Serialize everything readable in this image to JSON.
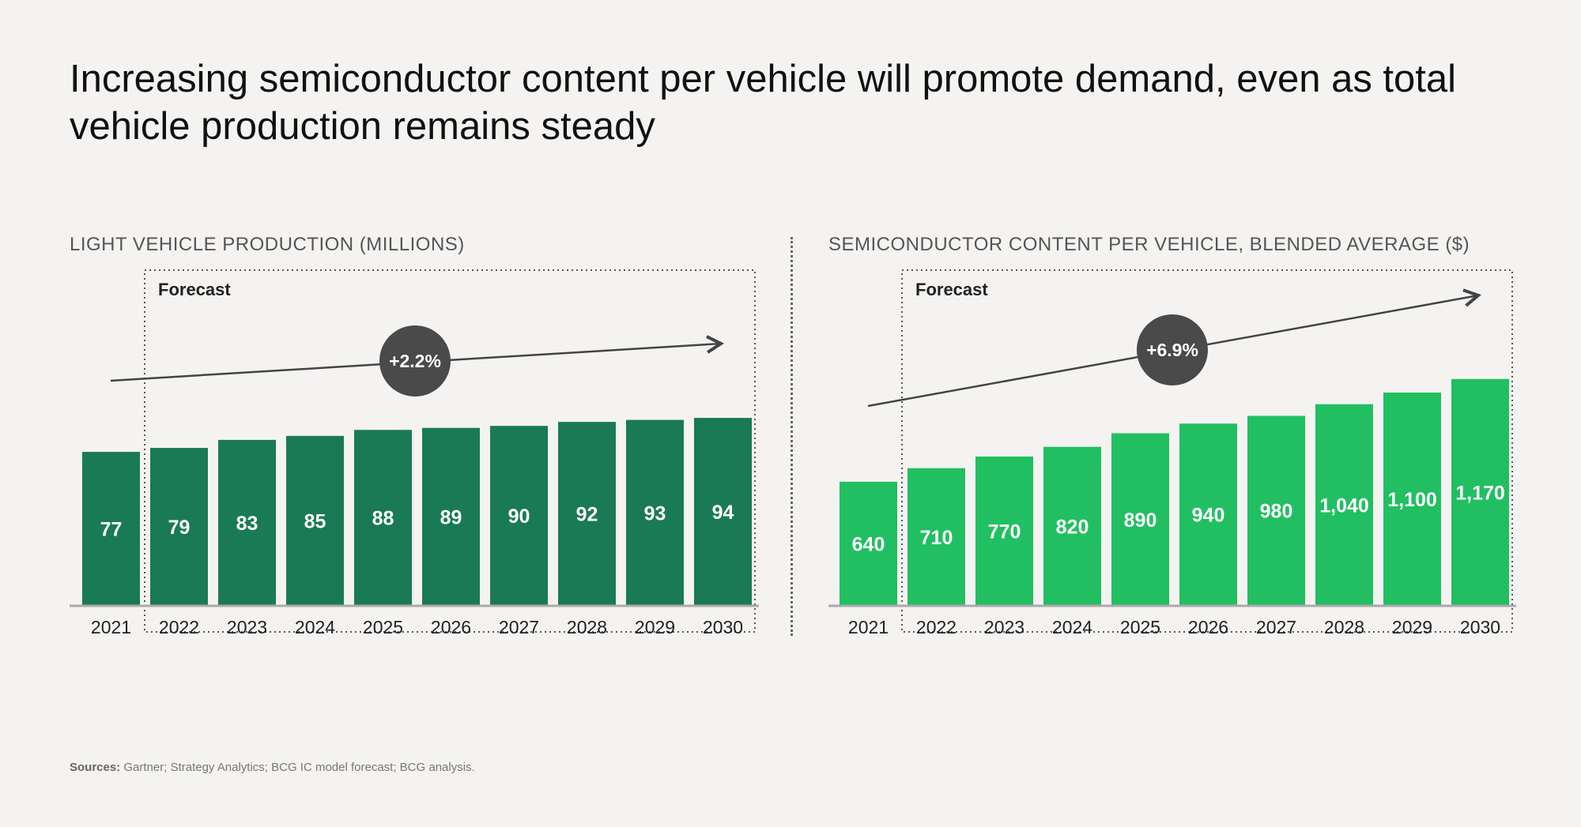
{
  "headline": "Increasing semiconductor content per vehicle will promote demand, even as total vehicle production remains steady",
  "sources": {
    "label": "Sources:",
    "text": "Gartner; Strategy Analytics; BCG IC model forecast; BCG analysis."
  },
  "colors": {
    "left_bars": "#1a7a55",
    "right_bars": "#21bf62",
    "bubble": "#4a4a4a",
    "axis": "#aaaaaa"
  },
  "chart_data": [
    {
      "type": "bar",
      "title": "LIGHT VEHICLE PRODUCTION (MILLIONS)",
      "categories": [
        "2021",
        "2022",
        "2023",
        "2024",
        "2025",
        "2026",
        "2027",
        "2028",
        "2029",
        "2030"
      ],
      "values": [
        77,
        79,
        83,
        85,
        88,
        89,
        90,
        92,
        93,
        94
      ],
      "value_labels": [
        "77",
        "79",
        "83",
        "85",
        "88",
        "89",
        "90",
        "92",
        "93",
        "94"
      ],
      "forecast_label": "Forecast",
      "forecast_start": "2022",
      "growth_label": "+2.2%",
      "ylim": [
        0,
        160
      ]
    },
    {
      "type": "bar",
      "title": "SEMICONDUCTOR CONTENT PER VEHICLE, BLENDED AVERAGE ($)",
      "categories": [
        "2021",
        "2022",
        "2023",
        "2024",
        "2025",
        "2026",
        "2027",
        "2028",
        "2029",
        "2030"
      ],
      "values": [
        640,
        710,
        770,
        820,
        890,
        940,
        980,
        1040,
        1100,
        1170
      ],
      "value_labels": [
        "640",
        "710",
        "770",
        "820",
        "890",
        "940",
        "980",
        "1,040",
        "1,100",
        "1,170"
      ],
      "forecast_label": "Forecast",
      "forecast_start": "2022",
      "growth_label": "+6.9%",
      "ylim": [
        0,
        1650
      ]
    }
  ]
}
